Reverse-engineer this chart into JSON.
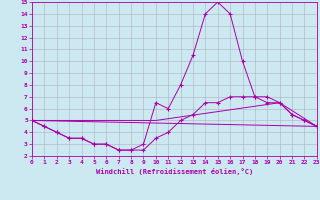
{
  "xlabel": "Windchill (Refroidissement éolien,°C)",
  "xlim": [
    0,
    23
  ],
  "ylim": [
    2,
    15
  ],
  "xticks": [
    0,
    1,
    2,
    3,
    4,
    5,
    6,
    7,
    8,
    9,
    10,
    11,
    12,
    13,
    14,
    15,
    16,
    17,
    18,
    19,
    20,
    21,
    22,
    23
  ],
  "yticks": [
    2,
    3,
    4,
    5,
    6,
    7,
    8,
    9,
    10,
    11,
    12,
    13,
    14,
    15
  ],
  "background_color": "#cce8f0",
  "grid_color": "#b0b0c0",
  "line_color": "#aa00aa",
  "line1_x": [
    0,
    1,
    2,
    3,
    4,
    5,
    6,
    7,
    8,
    9,
    10,
    11,
    12,
    13,
    14,
    15,
    16,
    17,
    18,
    19,
    20,
    21,
    22,
    23
  ],
  "line1_y": [
    5.0,
    4.5,
    4.0,
    3.5,
    3.5,
    3.0,
    3.0,
    2.5,
    2.5,
    3.0,
    6.5,
    6.0,
    8.0,
    10.5,
    14.0,
    15.0,
    14.0,
    10.0,
    7.0,
    6.5,
    6.5,
    5.5,
    5.0,
    4.5
  ],
  "line2_x": [
    0,
    1,
    2,
    3,
    4,
    5,
    6,
    7,
    8,
    9,
    10,
    11,
    12,
    13,
    14,
    15,
    16,
    17,
    18,
    19,
    20,
    21,
    22,
    23
  ],
  "line2_y": [
    5.0,
    4.5,
    4.0,
    3.5,
    3.5,
    3.0,
    3.0,
    2.5,
    2.5,
    2.5,
    3.5,
    4.0,
    5.0,
    5.5,
    6.5,
    6.5,
    7.0,
    7.0,
    7.0,
    7.0,
    6.5,
    5.5,
    5.0,
    4.5
  ],
  "line3_x": [
    0,
    23
  ],
  "line3_y": [
    5.0,
    4.5
  ],
  "line4_x": [
    0,
    10,
    20,
    23
  ],
  "line4_y": [
    5.0,
    5.0,
    6.5,
    4.5
  ],
  "figsize": [
    3.2,
    2.0
  ],
  "dpi": 100
}
